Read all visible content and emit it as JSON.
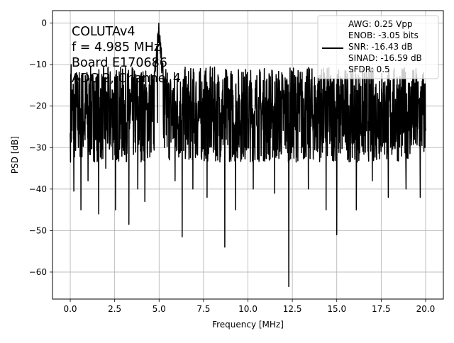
{
  "chart_data": {
    "type": "line",
    "xlabel": "Frequency [MHz]",
    "ylabel": "PSD [dB]",
    "xlim": [
      -1.0,
      21.0
    ],
    "ylim": [
      -66.5,
      3.0
    ],
    "grid": true,
    "legend_placement": "upper right",
    "line_color": "#000000",
    "x_ticks": [
      0.0,
      2.5,
      5.0,
      7.5,
      10.0,
      12.5,
      15.0,
      17.5,
      20.0
    ],
    "x_tick_labels": [
      "0.0",
      "2.5",
      "5.0",
      "7.5",
      "10.0",
      "12.5",
      "15.0",
      "17.5",
      "20.0"
    ],
    "y_ticks": [
      0,
      -10,
      -20,
      -30,
      -40,
      -50,
      -60
    ],
    "y_tick_labels": [
      "0",
      "−10",
      "−20",
      "−30",
      "−40",
      "−50",
      "−60"
    ],
    "annotation_lines": [
      "COLUTAv4",
      "f = 4.985 MHz",
      "Board E170686",
      "ADC 2, Channel 4"
    ],
    "legend_lines": [
      "AWG: 0.25 Vpp",
      "ENOB: -3.05 bits",
      "SNR: -16.43 dB",
      "SINAD: -16.59 dB",
      "SFDR: 0.5"
    ],
    "series": [
      {
        "noise_floor_db": -22,
        "noise_span_db": [
          -36,
          -13
        ],
        "x": [
          0.0,
          0.05,
          0.2,
          0.35,
          0.6,
          0.65,
          1.0,
          1.35,
          1.6,
          1.8,
          2.0,
          2.5,
          2.55,
          3.0,
          3.3,
          3.35,
          3.8,
          4.0,
          4.2,
          4.6,
          4.9,
          4.985,
          5.05,
          5.15,
          5.3,
          5.5,
          5.9,
          6.3,
          6.6,
          6.9,
          7.3,
          7.7,
          8.1,
          8.7,
          8.9,
          9.3,
          9.8,
          10.3,
          10.9,
          11.5,
          12.2,
          12.3,
          12.8,
          13.4,
          14.0,
          14.4,
          14.8,
          15.0,
          15.5,
          16.1,
          16.6,
          17.0,
          17.4,
          17.9,
          18.4,
          18.9,
          19.3,
          19.7,
          20.0
        ],
        "y": [
          -26.5,
          -10.0,
          -40.5,
          -12.0,
          -45.0,
          -15.0,
          -38.0,
          -14.0,
          -46.0,
          -13.0,
          -35.0,
          -13.0,
          -45.0,
          -15.0,
          -48.5,
          -16.0,
          -40.0,
          -12.0,
          -43.0,
          -14.0,
          -24.0,
          0.0,
          -3.0,
          -12.0,
          -30.0,
          -16.0,
          -38.0,
          -51.5,
          -17.0,
          -40.0,
          -14.0,
          -42.0,
          -15.0,
          -54.0,
          -16.0,
          -45.0,
          -13.0,
          -40.0,
          -15.0,
          -41.0,
          -14.0,
          -63.5,
          -13.0,
          -40.0,
          -14.0,
          -45.0,
          -13.5,
          -51.0,
          -14.0,
          -45.0,
          -13.0,
          -38.0,
          -14.0,
          -42.0,
          -13.0,
          -40.0,
          -14.0,
          -42.0,
          -26.0
        ]
      }
    ]
  }
}
